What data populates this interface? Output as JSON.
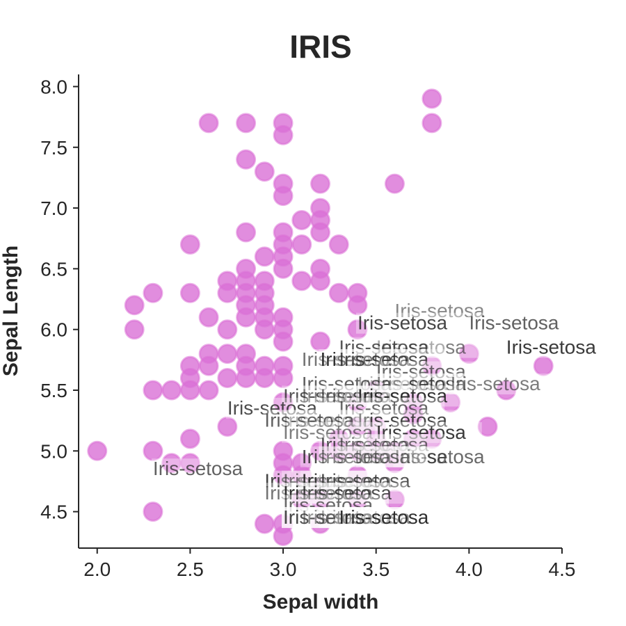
{
  "chart_data": {
    "type": "scatter",
    "title": "IRIS",
    "xlabel": "Sepal width",
    "ylabel": "Sepal Length",
    "xlim": [
      1.9,
      4.5
    ],
    "ylim": [
      4.2,
      8.1
    ],
    "xticks": [
      "2.0",
      "2.5",
      "3.0",
      "3.5",
      "4.0",
      "4.5"
    ],
    "yticks": [
      "4.5",
      "5.0",
      "5.5",
      "6.0",
      "6.5",
      "7.0",
      "7.5",
      "8.0"
    ],
    "grid": false,
    "marker_color": "#da70d6",
    "annotation_text": "Iris-setosa",
    "series": [
      {
        "points": [
          [
            2.6,
            7.7
          ],
          [
            2.8,
            7.7
          ],
          [
            3.0,
            7.7
          ],
          [
            3.0,
            7.6
          ],
          [
            3.8,
            7.9
          ],
          [
            3.8,
            7.7
          ],
          [
            2.8,
            7.4
          ],
          [
            2.9,
            7.3
          ],
          [
            3.0,
            7.2
          ],
          [
            3.2,
            7.2
          ],
          [
            3.6,
            7.2
          ],
          [
            3.0,
            7.1
          ],
          [
            3.2,
            7.0
          ],
          [
            3.1,
            6.9
          ],
          [
            3.2,
            6.9
          ],
          [
            2.8,
            6.8
          ],
          [
            3.0,
            6.8
          ],
          [
            3.2,
            6.8
          ],
          [
            2.5,
            6.7
          ],
          [
            3.0,
            6.7
          ],
          [
            3.1,
            6.7
          ],
          [
            3.3,
            6.7
          ],
          [
            2.9,
            6.6
          ],
          [
            3.0,
            6.6
          ],
          [
            2.7,
            6.4
          ],
          [
            2.8,
            6.4
          ],
          [
            2.9,
            6.4
          ],
          [
            3.1,
            6.4
          ],
          [
            3.2,
            6.4
          ],
          [
            2.8,
            6.5
          ],
          [
            3.0,
            6.5
          ],
          [
            3.2,
            6.5
          ],
          [
            2.3,
            6.3
          ],
          [
            2.5,
            6.3
          ],
          [
            2.7,
            6.3
          ],
          [
            2.8,
            6.3
          ],
          [
            2.9,
            6.3
          ],
          [
            3.3,
            6.3
          ],
          [
            3.4,
            6.3
          ],
          [
            2.2,
            6.2
          ],
          [
            2.8,
            6.2
          ],
          [
            2.9,
            6.2
          ],
          [
            3.4,
            6.2
          ],
          [
            2.6,
            6.1
          ],
          [
            2.8,
            6.1
          ],
          [
            2.9,
            6.1
          ],
          [
            3.0,
            6.1
          ],
          [
            2.2,
            6.0
          ],
          [
            2.7,
            6.0
          ],
          [
            2.9,
            6.0
          ],
          [
            3.0,
            6.0
          ],
          [
            3.4,
            6.0
          ],
          [
            3.0,
            5.9
          ],
          [
            3.2,
            5.9
          ],
          [
            2.6,
            5.8
          ],
          [
            2.7,
            5.8
          ],
          [
            2.8,
            5.8
          ],
          [
            4.0,
            5.8
          ],
          [
            2.5,
            5.7
          ],
          [
            2.6,
            5.7
          ],
          [
            2.8,
            5.7
          ],
          [
            2.9,
            5.7
          ],
          [
            3.0,
            5.7
          ],
          [
            3.8,
            5.7
          ],
          [
            4.4,
            5.7
          ],
          [
            2.5,
            5.6
          ],
          [
            2.7,
            5.6
          ],
          [
            2.8,
            5.6
          ],
          [
            2.9,
            5.6
          ],
          [
            3.0,
            5.6
          ],
          [
            2.3,
            5.5
          ],
          [
            2.4,
            5.5
          ],
          [
            2.5,
            5.5
          ],
          [
            2.6,
            5.5
          ],
          [
            3.5,
            5.5
          ],
          [
            4.2,
            5.5
          ],
          [
            3.0,
            5.4
          ],
          [
            3.4,
            5.4
          ],
          [
            3.7,
            5.4
          ],
          [
            3.9,
            5.4
          ],
          [
            3.7,
            5.3
          ],
          [
            2.7,
            5.2
          ],
          [
            3.4,
            5.2
          ],
          [
            3.5,
            5.2
          ],
          [
            4.1,
            5.2
          ],
          [
            2.5,
            5.1
          ],
          [
            3.3,
            5.1
          ],
          [
            3.5,
            5.1
          ],
          [
            3.7,
            5.1
          ],
          [
            3.8,
            5.1
          ],
          [
            2.0,
            5.0
          ],
          [
            2.3,
            5.0
          ],
          [
            3.0,
            5.0
          ],
          [
            3.2,
            5.0
          ],
          [
            3.3,
            5.0
          ],
          [
            3.4,
            5.0
          ],
          [
            3.5,
            5.0
          ],
          [
            3.6,
            5.0
          ],
          [
            2.4,
            4.9
          ],
          [
            2.5,
            4.9
          ],
          [
            3.0,
            4.9
          ],
          [
            3.1,
            4.9
          ],
          [
            3.6,
            4.9
          ],
          [
            3.0,
            4.8
          ],
          [
            3.1,
            4.8
          ],
          [
            3.4,
            4.8
          ],
          [
            3.2,
            4.7
          ],
          [
            3.1,
            4.6
          ],
          [
            3.2,
            4.6
          ],
          [
            3.4,
            4.6
          ],
          [
            3.6,
            4.6
          ],
          [
            2.3,
            4.5
          ],
          [
            2.9,
            4.4
          ],
          [
            3.0,
            4.4
          ],
          [
            3.2,
            4.4
          ],
          [
            3.0,
            4.3
          ]
        ]
      }
    ],
    "annotations": [
      [
        3.6,
        6.1
      ],
      [
        3.4,
        6.0
      ],
      [
        4.0,
        6.0
      ],
      [
        3.5,
        5.8
      ],
      [
        4.2,
        5.8
      ],
      [
        3.3,
        5.8
      ],
      [
        3.1,
        5.7
      ],
      [
        3.2,
        5.7
      ],
      [
        3.3,
        5.7
      ],
      [
        3.5,
        5.6
      ],
      [
        3.4,
        5.5
      ],
      [
        3.5,
        5.5
      ],
      [
        3.1,
        5.5
      ],
      [
        3.9,
        5.5
      ],
      [
        3.1,
        5.4
      ],
      [
        3.0,
        5.4
      ],
      [
        3.2,
        5.4
      ],
      [
        3.4,
        5.4
      ],
      [
        2.7,
        5.3
      ],
      [
        3.3,
        5.3
      ],
      [
        3.0,
        5.2
      ],
      [
        3.4,
        5.2
      ],
      [
        2.9,
        5.2
      ],
      [
        3.0,
        5.1
      ],
      [
        3.5,
        5.1
      ],
      [
        3.2,
        5.0
      ],
      [
        3.3,
        5.0
      ],
      [
        3.4,
        4.9
      ],
      [
        3.1,
        4.9
      ],
      [
        3.6,
        4.9
      ],
      [
        3.2,
        4.9
      ],
      [
        2.9,
        4.7
      ],
      [
        2.3,
        4.8
      ],
      [
        3.0,
        4.7
      ],
      [
        3.1,
        4.7
      ],
      [
        3.2,
        4.7
      ],
      [
        2.9,
        4.6
      ],
      [
        3.0,
        4.6
      ],
      [
        3.1,
        4.6
      ],
      [
        3.0,
        4.5
      ],
      [
        3.2,
        4.4
      ],
      [
        3.0,
        4.4
      ],
      [
        3.0,
        4.4
      ],
      [
        3.0,
        4.4
      ],
      [
        3.2,
        4.4
      ],
      [
        3.1,
        4.4
      ],
      [
        3.0,
        4.4
      ],
      [
        3.3,
        4.4
      ]
    ]
  }
}
